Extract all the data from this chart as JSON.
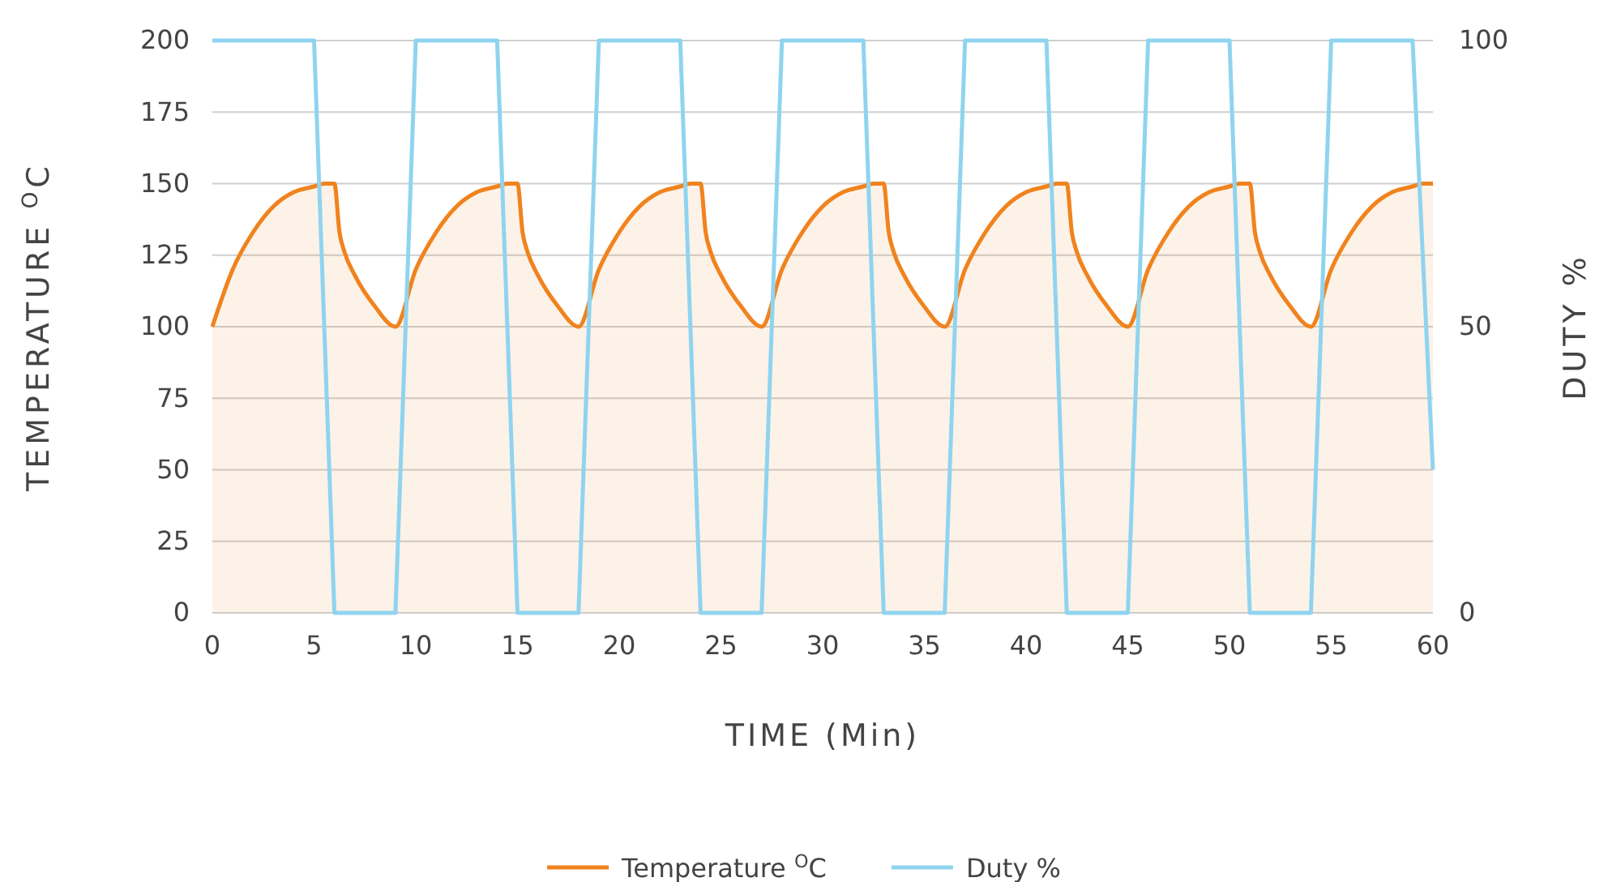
{
  "chart_data": {
    "type": "line",
    "xlabel": "TIME (Min)",
    "ylabel": "TEMPERATURE $^{O}$C",
    "y2label": "DUTY %",
    "xlim": [
      0,
      60
    ],
    "xticks": [
      0,
      5,
      10,
      15,
      20,
      25,
      30,
      35,
      40,
      45,
      50,
      55,
      60
    ],
    "ylim": [
      0,
      200
    ],
    "yticks": [
      0,
      25,
      50,
      75,
      100,
      125,
      150,
      175,
      200
    ],
    "y2lim": [
      0,
      100
    ],
    "y2ticks": [
      0,
      50,
      100
    ],
    "grid": "y",
    "legend": "bottom",
    "marker": "none",
    "line_style": "solid",
    "series": [
      {
        "name": "Temperature $^{O}$C",
        "type": "area",
        "color": "#f0831e",
        "x": [
          0,
          1,
          2,
          3,
          4,
          5,
          5.5,
          6,
          6.25,
          6.5,
          7,
          8,
          9,
          10,
          11,
          12,
          13,
          14,
          14.5,
          15,
          15.25,
          15.5,
          16,
          17,
          18,
          19,
          20,
          21,
          22,
          23,
          23.5,
          24,
          24.25,
          24.5,
          25,
          26,
          27,
          28,
          29,
          30,
          31,
          32,
          32.5,
          33,
          33.25,
          33.5,
          34,
          35,
          36,
          37,
          38,
          39,
          40,
          41,
          41.5,
          42,
          42.25,
          42.5,
          43,
          44,
          45,
          46,
          47,
          48,
          49,
          50,
          50.5,
          51,
          51.25,
          51.5,
          52,
          53,
          54,
          55,
          56,
          57,
          58,
          59,
          59.5,
          60
        ],
        "values": [
          100,
          120,
          133,
          142,
          147,
          149,
          150,
          150,
          133,
          126,
          118,
          107,
          100,
          120,
          133,
          142,
          147,
          149,
          150,
          150,
          133,
          126,
          118,
          107,
          100,
          120,
          133,
          142,
          147,
          149,
          150,
          150,
          133,
          126,
          118,
          107,
          100,
          120,
          133,
          142,
          147,
          149,
          150,
          150,
          133,
          126,
          118,
          107,
          100,
          120,
          133,
          142,
          147,
          149,
          150,
          150,
          133,
          126,
          118,
          107,
          100,
          120,
          133,
          142,
          147,
          149,
          150,
          150,
          133,
          126,
          118,
          107,
          100,
          120,
          133,
          142,
          147,
          149,
          150,
          150
        ]
      },
      {
        "name": "Duty %",
        "type": "line",
        "axis": "y2",
        "color": "#8fd4ef",
        "x": [
          0,
          5,
          6,
          9,
          10,
          14,
          15,
          18,
          19,
          23,
          24,
          27,
          28,
          32,
          33,
          36,
          37,
          41,
          42,
          45,
          46,
          50,
          51,
          54,
          55,
          59,
          60
        ],
        "values": [
          100,
          100,
          0,
          0,
          100,
          100,
          0,
          0,
          100,
          100,
          0,
          0,
          100,
          100,
          0,
          0,
          100,
          100,
          0,
          0,
          100,
          100,
          0,
          0,
          100,
          100,
          25
        ]
      }
    ]
  }
}
